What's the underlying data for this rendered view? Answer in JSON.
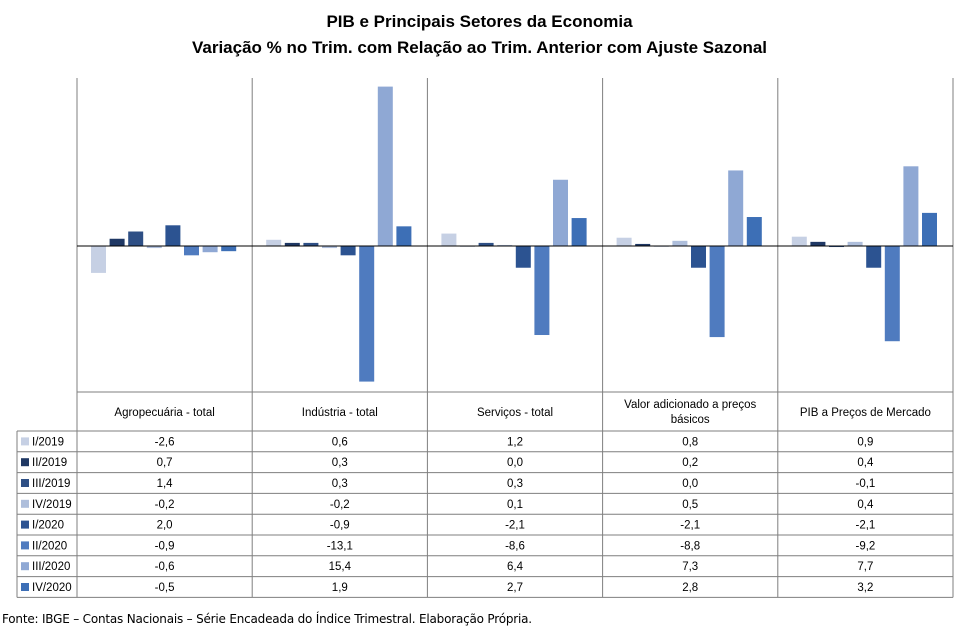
{
  "chart_data": {
    "type": "bar",
    "title": "PIB e Principais  Setores da Economia",
    "subtitle": "Variação % no Trim. com Relação ao Trim. Anterior com Ajuste Sazonal",
    "categories": [
      "Agropecuária - total",
      "Indústria - total",
      "Serviços - total",
      "Valor adicionado a preços básicos",
      "PIB a Preços de Mercado"
    ],
    "series": [
      {
        "name": "I/2019",
        "color": "#c6d0e4",
        "values": [
          "-2,6",
          "0,6",
          "1,2",
          "0,8",
          "0,9"
        ]
      },
      {
        "name": "II/2019",
        "color": "#1f3864",
        "values": [
          "0,7",
          "0,3",
          "0,0",
          "0,2",
          "0,4"
        ]
      },
      {
        "name": "III/2019",
        "color": "#2e4f85",
        "values": [
          "1,4",
          "0,3",
          "0,3",
          "0,0",
          "-0,1"
        ]
      },
      {
        "name": "IV/2019",
        "color": "#aebedb",
        "values": [
          "-0,2",
          "-0,2",
          "0,1",
          "0,5",
          "0,4"
        ]
      },
      {
        "name": "I/2020",
        "color": "#2c5391",
        "values": [
          "2,0",
          "-0,9",
          "-2,1",
          "-2,1",
          "-2,1"
        ]
      },
      {
        "name": "II/2020",
        "color": "#4f7bbf",
        "values": [
          "-0,9",
          "-13,1",
          "-8,6",
          "-8,8",
          "-9,2"
        ]
      },
      {
        "name": "III/2020",
        "color": "#8fa8d4",
        "values": [
          "-0,6",
          "15,4",
          "6,4",
          "7,3",
          "7,7"
        ]
      },
      {
        "name": "IV/2020",
        "color": "#3d6fb6",
        "values": [
          "-0,5",
          "1,9",
          "2,7",
          "2,8",
          "3,2"
        ]
      }
    ],
    "ylim": [
      -13.5,
      16
    ],
    "grid": false,
    "legend": "data-table"
  },
  "source": "Fonte: IBGE – Contas Nacionais – Série Encadeada do Índice Trimestral. Elaboração Própria."
}
